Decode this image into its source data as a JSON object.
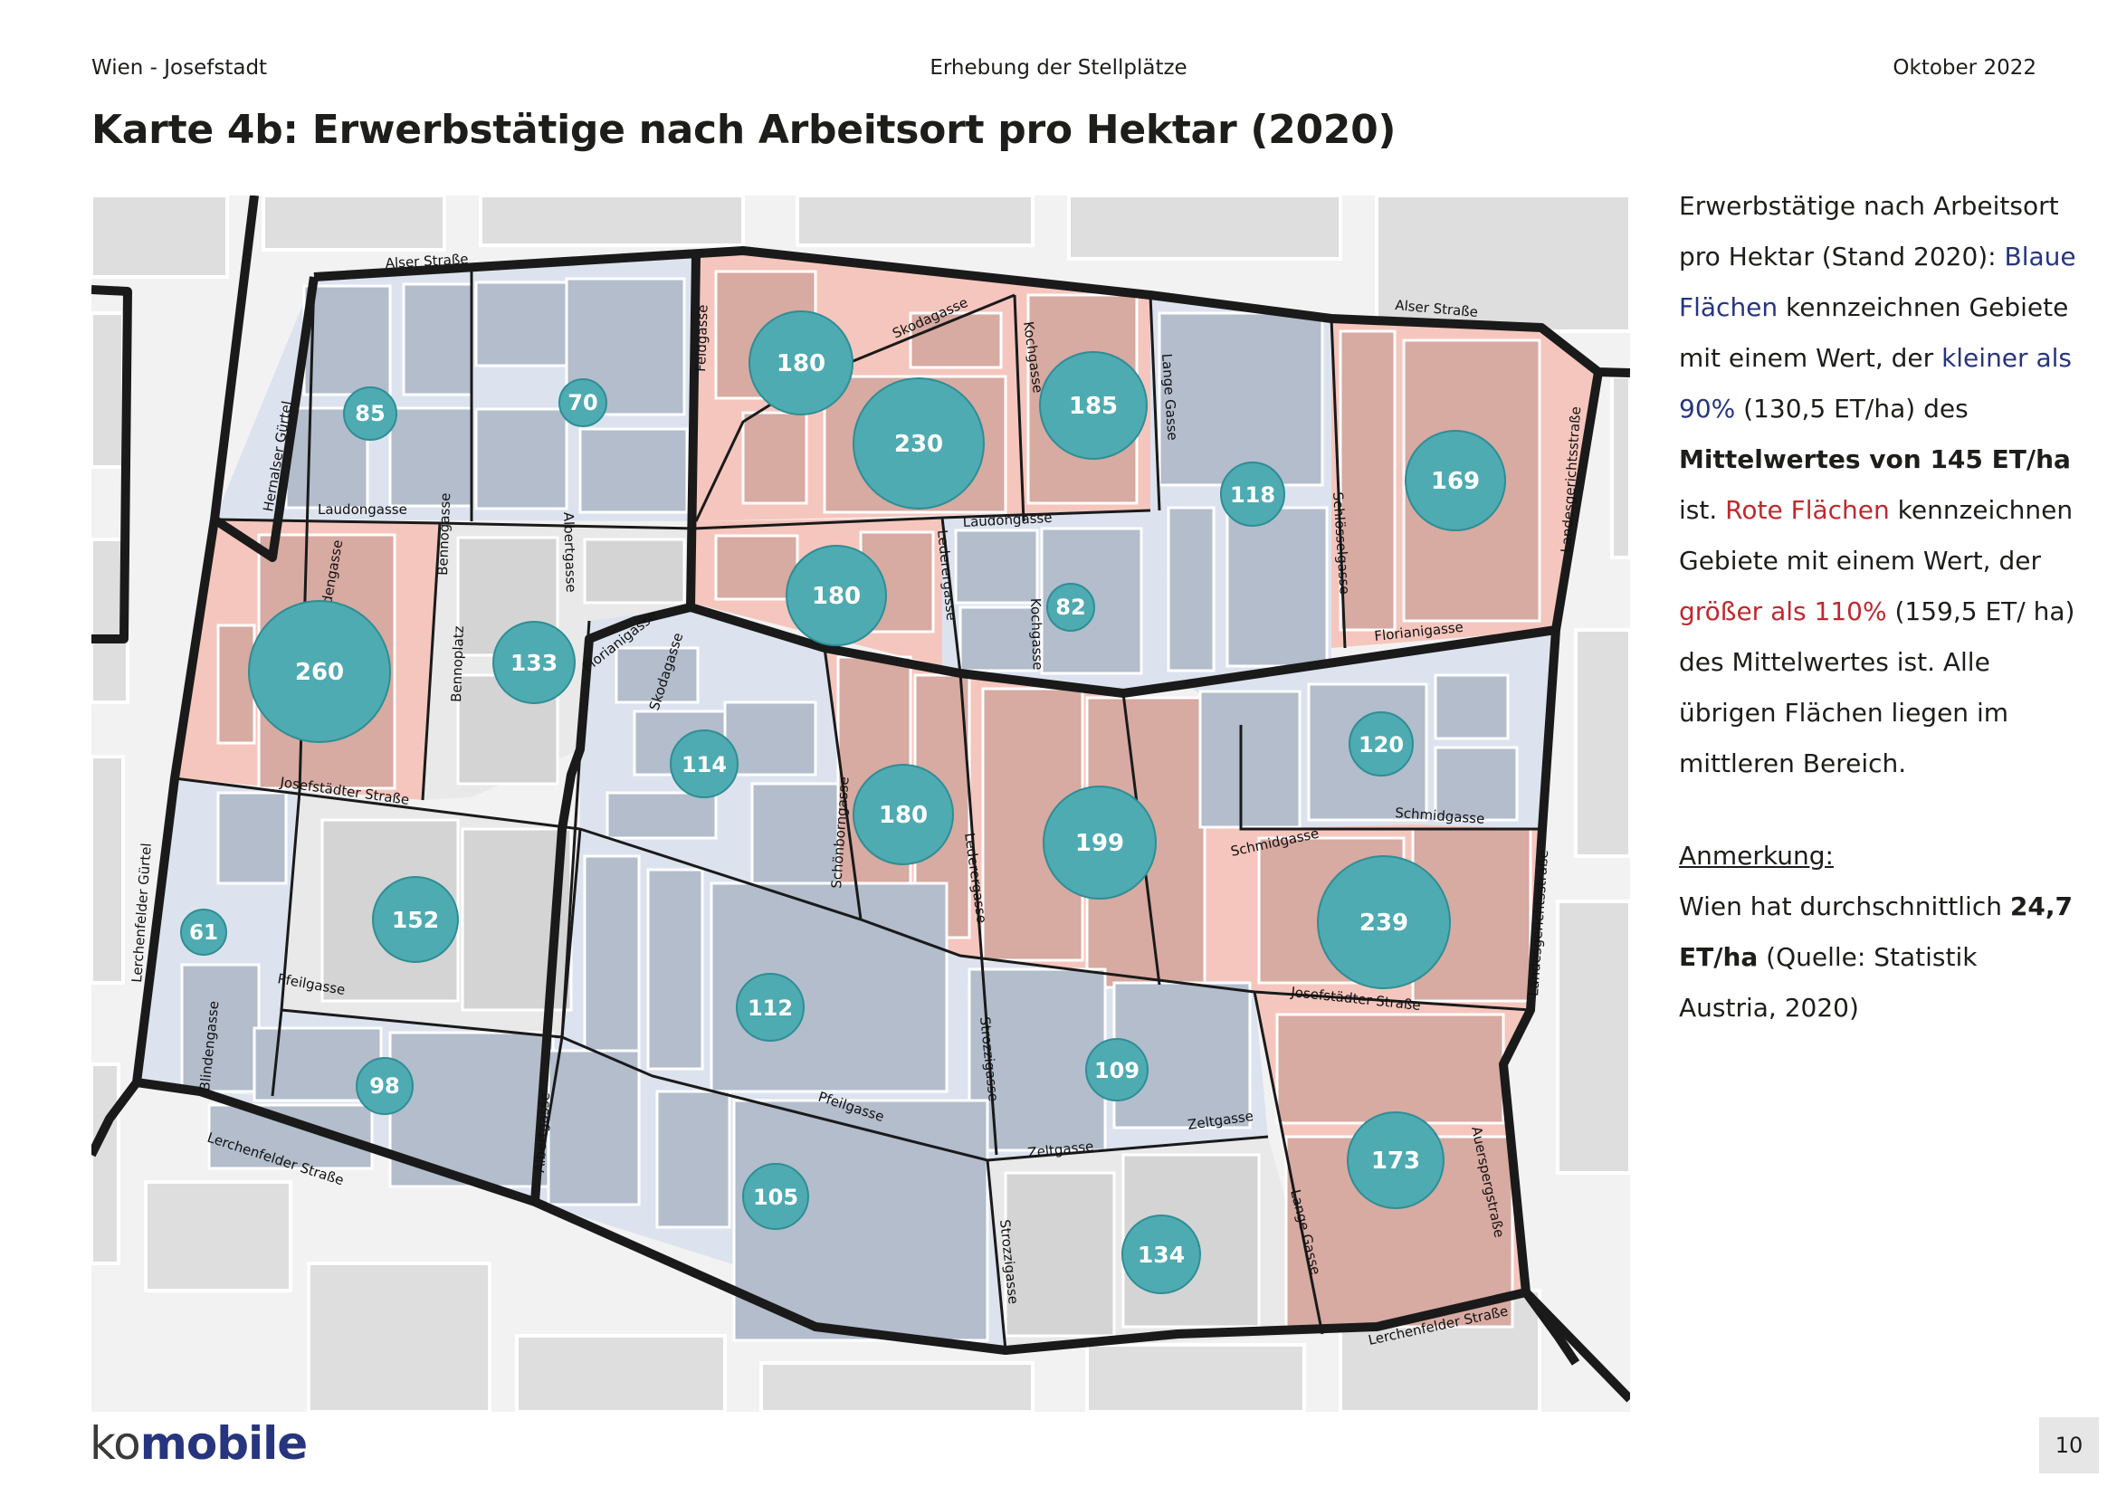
{
  "header": {
    "left": "Wien - Josefstadt",
    "center": "Erhebung der Stellplätze",
    "right": "Oktober 2022"
  },
  "title": "Karte 4b: Erwerbstätige nach Arbeitsort pro Hektar (2020)",
  "legend": {
    "p1_text_1": "Erwerbstätige nach Arbeitsort pro Hektar (Stand 2020): ",
    "p1_blue_1": "Blaue Flächen",
    "p1_text_2": " kennzeichnen Gebiete mit einem Wert, der ",
    "p1_blue_2": "kleiner als 90%",
    "p1_text_3": " (130,5 ET/ha) des ",
    "p1_bold": "Mittelwertes von 145 ET/ha",
    "p1_text_4": " ist. ",
    "p1_red_1": "Rote Flächen",
    "p1_text_5": " kennzeichnen Gebiete mit einem Wert, der ",
    "p1_red_2": "größer als 110%",
    "p1_text_6": " (159,5 ET/ ha) des Mittelwertes ist. Alle übrigen Flächen liegen im mittleren Bereich.",
    "note_title": "Anmerkung:",
    "note_text_1": "Wien hat durchschnittlich ",
    "note_bold": "24,7 ET/ha",
    "note_text_2": " (Quelle: Statistik Austria, 2020)"
  },
  "colors": {
    "blue_area": "#dce3ef",
    "red_area": "#f5c6bd",
    "neutral_area": "#e9e9e9",
    "bubble": "#4eabb1",
    "boundary": "#1a1a1a"
  },
  "map": {
    "values": [
      {
        "id": "v85",
        "value": "85"
      },
      {
        "id": "v70",
        "value": "70"
      },
      {
        "id": "v180a",
        "value": "180"
      },
      {
        "id": "v230",
        "value": "230"
      },
      {
        "id": "v185",
        "value": "185"
      },
      {
        "id": "v118",
        "value": "118"
      },
      {
        "id": "v169",
        "value": "169"
      },
      {
        "id": "v260",
        "value": "260"
      },
      {
        "id": "v133",
        "value": "133"
      },
      {
        "id": "v180b",
        "value": "180"
      },
      {
        "id": "v82",
        "value": "82"
      },
      {
        "id": "v114",
        "value": "114"
      },
      {
        "id": "v180c",
        "value": "180"
      },
      {
        "id": "v199",
        "value": "199"
      },
      {
        "id": "v120",
        "value": "120"
      },
      {
        "id": "v239",
        "value": "239"
      },
      {
        "id": "v61",
        "value": "61"
      },
      {
        "id": "v152",
        "value": "152"
      },
      {
        "id": "v112",
        "value": "112"
      },
      {
        "id": "v109",
        "value": "109"
      },
      {
        "id": "v98",
        "value": "98"
      },
      {
        "id": "v105",
        "value": "105"
      },
      {
        "id": "v134",
        "value": "134"
      },
      {
        "id": "v173",
        "value": "173"
      }
    ],
    "streets": {
      "alser_1": "Alser Straße",
      "alser_2": "Alser Straße",
      "hernalser": "Hernalser Gürtel",
      "laudon_1": "Laudongasse",
      "laudon_2": "Laudongasse",
      "bennogasse": "Bennogasse",
      "albertgasse_1": "Albertgasse",
      "feldgasse": "Feldgasse",
      "skodagasse_1": "Skodagasse",
      "skodagasse_2": "Skodagasse",
      "kochgasse_1": "Kochgasse",
      "kochgasse_2": "Kochgasse",
      "lange_1": "Lange Gasse",
      "lange_2": "Lange Gasse",
      "schloessel": "Schlösselgasse",
      "landesgericht_1": "Landesgerichtsstraße",
      "landesgericht_2": "Landesgerichtsstraße",
      "blinden_1": "Blindengasse",
      "blinden_2": "Blindengasse",
      "bennoplatz": "Bennoplatz",
      "florianigasse_1": "Florianigasse",
      "florianigasse_2": "Florianigasse",
      "lederer_1": "Lederergasse",
      "lederer_2": "Lederergasse",
      "josefst_1": "Josefstädter Straße",
      "josefst_2": "Josefstädter Straße",
      "schoenborn": "Schönborngasse",
      "schmid_1": "Schmidgasse",
      "schmid_2": "Schmidgasse",
      "lerchenfelder_g": "Lerchenfelder Gürtel",
      "pfeil_1": "Pfeilgasse",
      "pfeil_2": "Pfeilgasse",
      "strozzi_1": "Strozzigasse",
      "strozzi_2": "Strozzigasse",
      "zelt_1": "Zeltgasse",
      "zelt_2": "Zeltgasse",
      "albertgasse_2": "Albertgasse",
      "lerchenfelder_s1": "Lerchenfelder Straße",
      "lerchenfelder_s2": "Lerchenfelder Straße",
      "auersperg": "Auerspergstraße"
    }
  },
  "logo": {
    "ko": "ko",
    "mobile": "mobile"
  },
  "page_number": "10"
}
